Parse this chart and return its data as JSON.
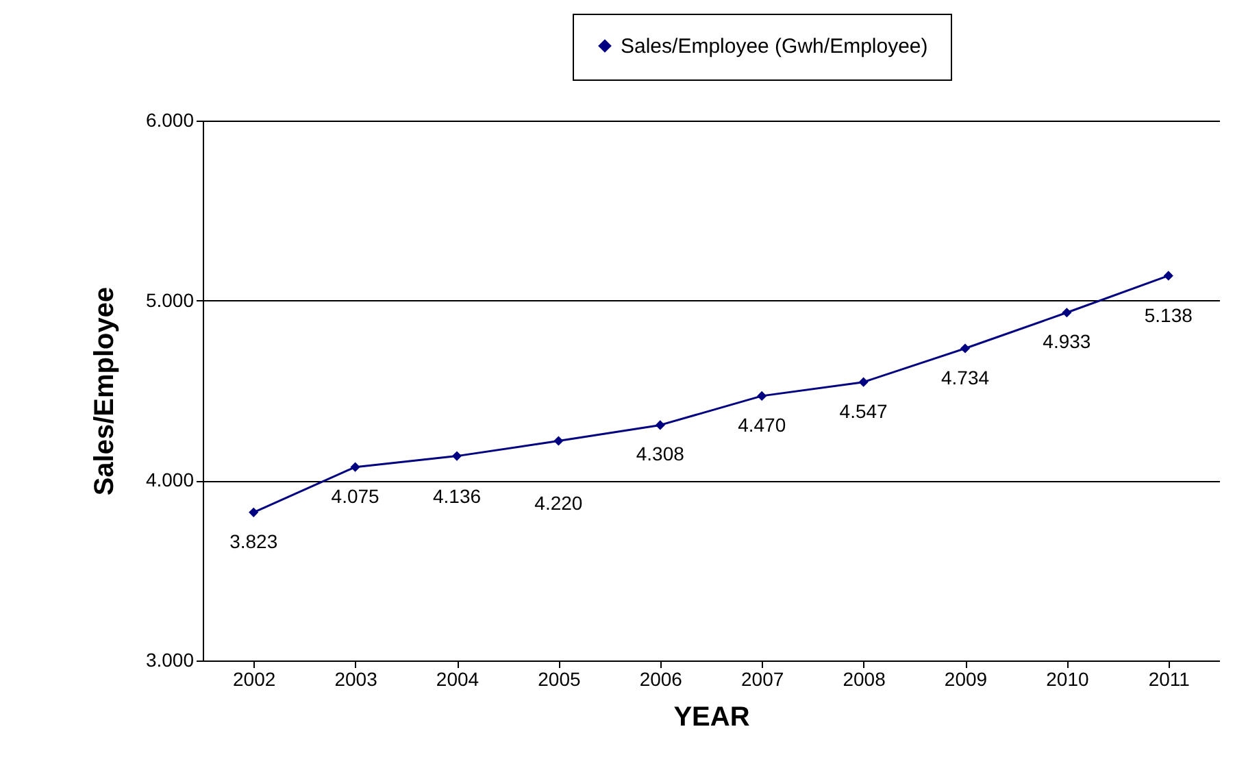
{
  "chart_data": {
    "type": "line",
    "xlabel": "YEAR",
    "ylabel": "Sales/Employee",
    "categories": [
      "2002",
      "2003",
      "2004",
      "2005",
      "2006",
      "2007",
      "2008",
      "2009",
      "2010",
      "2011"
    ],
    "series": [
      {
        "name": "Sales/Employee (Gwh/Employee)",
        "color": "#000080",
        "values": [
          3.823,
          4.075,
          4.136,
          4.22,
          4.308,
          4.47,
          4.547,
          4.734,
          4.933,
          5.138
        ],
        "value_labels": [
          "3.823",
          "4.075",
          "4.136",
          "4.220",
          "4.308",
          "4.470",
          "4.547",
          "4.734",
          "4.933",
          "5.138"
        ]
      }
    ],
    "ylim": [
      3,
      6
    ],
    "yticks": [
      {
        "value": 3,
        "label": "3.000"
      },
      {
        "value": 4,
        "label": "4.000"
      },
      {
        "value": 5,
        "label": "5.000"
      },
      {
        "value": 6,
        "label": "6.000"
      }
    ],
    "grid": "y",
    "legend": "top right",
    "marker": "diamond"
  }
}
